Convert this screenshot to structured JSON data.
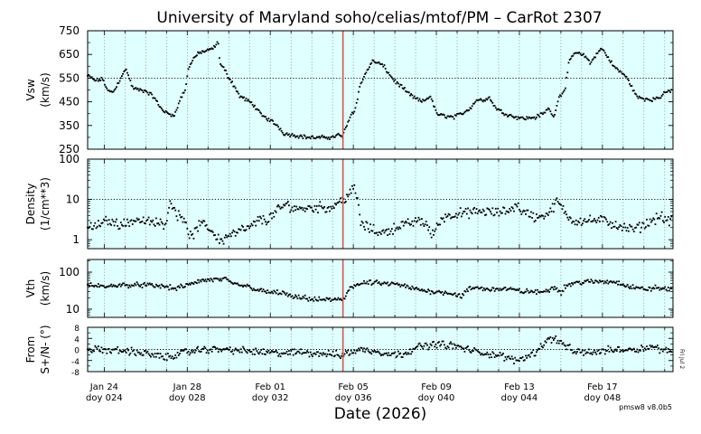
{
  "title": "University of Maryland  soho/celias/mtof/PM – CarRot 2307",
  "xlabel": "Date (2026)",
  "version": "pmsw8 v8.0b5",
  "side_note": "Fri Jul 2",
  "colors": {
    "panel_bg": "#e0ffff",
    "marker": "#000000",
    "event_line": "#d9534f",
    "grid": "#7a7a7a"
  },
  "chart_data": [
    {
      "type": "scatter",
      "ylabel": "Vsw\n(km/s)",
      "ylim": [
        250,
        750
      ],
      "yticks": [
        250,
        350,
        450,
        550,
        650,
        750
      ],
      "reference_line": 550,
      "grid": true,
      "xlim": [
        0,
        28
      ],
      "anchors": [
        [
          0,
          560
        ],
        [
          0.4,
          540
        ],
        [
          0.8,
          545
        ],
        [
          1.0,
          500
        ],
        [
          1.2,
          490
        ],
        [
          1.4,
          500
        ],
        [
          1.8,
          570
        ],
        [
          2.0,
          585
        ],
        [
          2.3,
          510
        ],
        [
          2.6,
          500
        ],
        [
          3.0,
          495
        ],
        [
          3.4,
          470
        ],
        [
          3.7,
          430
        ],
        [
          4.0,
          405
        ],
        [
          4.3,
          395
        ],
        [
          4.5,
          400
        ],
        [
          4.8,
          470
        ],
        [
          5.0,
          495
        ],
        [
          5.2,
          600
        ],
        [
          5.5,
          640
        ],
        [
          5.8,
          660
        ],
        [
          6.2,
          665
        ],
        [
          6.5,
          680
        ],
        [
          6.7,
          700
        ],
        [
          6.8,
          610
        ],
        [
          7.0,
          590
        ],
        [
          7.2,
          560
        ],
        [
          7.5,
          520
        ],
        [
          7.8,
          475
        ],
        [
          8.2,
          455
        ],
        [
          8.5,
          440
        ],
        [
          8.9,
          395
        ],
        [
          9.2,
          380
        ],
        [
          9.5,
          365
        ],
        [
          9.8,
          345
        ],
        [
          10.1,
          315
        ],
        [
          10.5,
          310
        ],
        [
          10.9,
          305
        ],
        [
          11.3,
          300
        ],
        [
          11.8,
          298
        ],
        [
          12.2,
          300
        ],
        [
          12.5,
          300
        ],
        [
          12.9,
          310
        ],
        [
          13.1,
          305
        ],
        [
          13.5,
          395
        ],
        [
          13.7,
          410
        ],
        [
          14.0,
          520
        ],
        [
          14.3,
          575
        ],
        [
          14.6,
          620
        ],
        [
          14.9,
          615
        ],
        [
          15.2,
          600
        ],
        [
          15.5,
          565
        ],
        [
          15.8,
          535
        ],
        [
          16.1,
          515
        ],
        [
          16.4,
          490
        ],
        [
          16.8,
          465
        ],
        [
          17.2,
          450
        ],
        [
          17.6,
          475
        ],
        [
          17.8,
          425
        ],
        [
          18.0,
          395
        ],
        [
          18.4,
          390
        ],
        [
          18.8,
          385
        ],
        [
          19.2,
          400
        ],
        [
          19.6,
          420
        ],
        [
          20.0,
          460
        ],
        [
          20.3,
          455
        ],
        [
          20.6,
          470
        ],
        [
          20.9,
          430
        ],
        [
          21.2,
          410
        ],
        [
          21.6,
          395
        ],
        [
          22.0,
          385
        ],
        [
          22.5,
          380
        ],
        [
          23.0,
          385
        ],
        [
          23.4,
          400
        ],
        [
          23.7,
          425
        ],
        [
          23.9,
          380
        ],
        [
          24.2,
          470
        ],
        [
          24.5,
          500
        ],
        [
          24.7,
          610
        ],
        [
          25.0,
          660
        ],
        [
          25.3,
          650
        ],
        [
          25.6,
          640
        ],
        [
          25.8,
          610
        ],
        [
          26.1,
          650
        ],
        [
          26.4,
          675
        ],
        [
          26.7,
          640
        ],
        [
          27.0,
          600
        ],
        [
          27.3,
          580
        ],
        [
          27.6,
          560
        ],
        [
          27.9,
          520
        ]
      ],
      "anchors_tail": [
        [
          28.2,
          470
        ],
        [
          28.6,
          462
        ],
        [
          29.0,
          460
        ],
        [
          29.4,
          470
        ],
        [
          29.7,
          490
        ],
        [
          30.0,
          500
        ]
      ],
      "amp": 10
    },
    {
      "type": "scatter",
      "ylabel": "Density\n(1/cm**3)",
      "yscale": "log",
      "ylim": [
        0.6,
        100
      ],
      "yticks": [
        1,
        10,
        100
      ],
      "reference_line": 10,
      "grid": true,
      "anchors": [
        [
          0,
          2.0
        ],
        [
          0.5,
          2.2
        ],
        [
          1.0,
          3.0
        ],
        [
          1.5,
          2.5
        ],
        [
          2.0,
          2.5
        ],
        [
          2.5,
          3.2
        ],
        [
          3.0,
          2.8
        ],
        [
          3.5,
          2.6
        ],
        [
          4.0,
          2.5
        ],
        [
          4.3,
          8.5
        ],
        [
          4.6,
          4.0
        ],
        [
          5.0,
          3.5
        ],
        [
          5.2,
          1.1
        ],
        [
          5.5,
          1.5
        ],
        [
          5.8,
          2.5
        ],
        [
          6.2,
          2.0
        ],
        [
          6.6,
          1.2
        ],
        [
          6.9,
          0.9
        ],
        [
          7.2,
          1.3
        ],
        [
          7.6,
          1.5
        ],
        [
          8.0,
          1.8
        ],
        [
          8.4,
          2.0
        ],
        [
          8.8,
          3.2
        ],
        [
          9.2,
          3.0
        ],
        [
          9.5,
          4.0
        ],
        [
          9.8,
          5.5
        ],
        [
          10.2,
          7.5
        ],
        [
          10.6,
          6.0
        ],
        [
          11.0,
          6.0
        ],
        [
          11.5,
          6.2
        ],
        [
          12.0,
          6.5
        ],
        [
          12.5,
          6.0
        ],
        [
          12.9,
          9.0
        ],
        [
          13.2,
          10.5
        ],
        [
          13.5,
          15
        ],
        [
          13.7,
          18
        ],
        [
          14.0,
          2.5
        ],
        [
          14.4,
          2.0
        ],
        [
          14.8,
          1.6
        ],
        [
          15.2,
          1.5
        ],
        [
          15.6,
          1.8
        ],
        [
          16.0,
          2.2
        ],
        [
          16.5,
          2.5
        ],
        [
          17.0,
          3.0
        ],
        [
          17.4,
          2.5
        ],
        [
          17.6,
          1.3
        ],
        [
          17.9,
          1.8
        ],
        [
          18.2,
          3.5
        ],
        [
          18.6,
          4.0
        ],
        [
          19.0,
          4.5
        ],
        [
          19.4,
          4.5
        ],
        [
          19.8,
          4.8
        ],
        [
          20.2,
          5.0
        ],
        [
          20.6,
          5.0
        ],
        [
          21.0,
          4.5
        ],
        [
          21.4,
          5.0
        ],
        [
          21.8,
          6.0
        ],
        [
          22.0,
          7.5
        ],
        [
          22.3,
          5.0
        ],
        [
          22.6,
          4.5
        ],
        [
          23.0,
          3.5
        ],
        [
          23.4,
          4.0
        ],
        [
          23.8,
          5.0
        ],
        [
          24.1,
          9.0
        ],
        [
          24.4,
          5.5
        ],
        [
          24.7,
          3.5
        ],
        [
          25.0,
          3.0
        ],
        [
          25.5,
          3.0
        ],
        [
          26.0,
          3.0
        ],
        [
          26.5,
          3.0
        ],
        [
          26.9,
          2.5
        ],
        [
          27.3,
          2.2
        ],
        [
          27.7,
          1.8
        ],
        [
          28.0,
          1.8
        ]
      ],
      "anchors_tail": [
        [
          28.3,
          2.0
        ],
        [
          28.7,
          2.5
        ],
        [
          29.1,
          3.2
        ],
        [
          29.4,
          4.0
        ],
        [
          29.7,
          3.0
        ],
        [
          30.0,
          2.8
        ]
      ],
      "amp": 0.15
    },
    {
      "type": "scatter",
      "ylabel": "Vth\n(km/s)",
      "yscale": "log",
      "ylim": [
        6,
        220
      ],
      "yticks": [
        10,
        100
      ],
      "grid": true,
      "anchors": [
        [
          0,
          45
        ],
        [
          0.5,
          42
        ],
        [
          1.0,
          40
        ],
        [
          1.5,
          45
        ],
        [
          2.0,
          45
        ],
        [
          3.0,
          45
        ],
        [
          3.5,
          42
        ],
        [
          4.0,
          42
        ],
        [
          4.4,
          35
        ],
        [
          4.8,
          40
        ],
        [
          5.2,
          45
        ],
        [
          5.6,
          55
        ],
        [
          6.0,
          60
        ],
        [
          6.5,
          62
        ],
        [
          7.0,
          65
        ],
        [
          7.4,
          50
        ],
        [
          7.8,
          45
        ],
        [
          8.2,
          42
        ],
        [
          8.6,
          35
        ],
        [
          9.0,
          30
        ],
        [
          9.5,
          28
        ],
        [
          10.0,
          28
        ],
        [
          10.4,
          22
        ],
        [
          10.8,
          20
        ],
        [
          11.2,
          20
        ],
        [
          11.6,
          18
        ],
        [
          12.0,
          18
        ],
        [
          12.5,
          18
        ],
        [
          13.0,
          18
        ],
        [
          13.2,
          20
        ],
        [
          13.5,
          40
        ],
        [
          13.8,
          45
        ],
        [
          14.2,
          50
        ],
        [
          14.6,
          52
        ],
        [
          15.0,
          50
        ],
        [
          15.5,
          48
        ],
        [
          16.0,
          45
        ],
        [
          16.4,
          40
        ],
        [
          16.8,
          35
        ],
        [
          17.2,
          32
        ],
        [
          17.6,
          30
        ],
        [
          18.0,
          30
        ],
        [
          18.4,
          28
        ],
        [
          18.8,
          26
        ],
        [
          19.2,
          22
        ],
        [
          19.6,
          35
        ],
        [
          20.0,
          38
        ],
        [
          20.4,
          35
        ],
        [
          20.8,
          35
        ],
        [
          21.2,
          35
        ],
        [
          21.6,
          35
        ],
        [
          22.0,
          32
        ],
        [
          22.4,
          30
        ],
        [
          22.8,
          30
        ],
        [
          23.2,
          28
        ],
        [
          23.6,
          32
        ],
        [
          24.0,
          40
        ],
        [
          24.3,
          28
        ],
        [
          24.6,
          45
        ],
        [
          25.0,
          50
        ],
        [
          25.5,
          55
        ],
        [
          26.0,
          55
        ],
        [
          26.5,
          55
        ],
        [
          27.0,
          55
        ],
        [
          27.4,
          50
        ],
        [
          27.8,
          40
        ],
        [
          28.0,
          40
        ]
      ],
      "anchors_tail": [
        [
          28.4,
          35
        ],
        [
          28.8,
          35
        ],
        [
          29.2,
          38
        ],
        [
          29.6,
          35
        ],
        [
          30.0,
          35
        ]
      ],
      "amp": 0.08
    },
    {
      "type": "scatter",
      "ylabel": "From\nS+/N- (°)",
      "ylim": [
        -8,
        8
      ],
      "yticks": [
        -8,
        -4,
        0,
        4,
        8
      ],
      "reference_line": 0,
      "grid": true,
      "anchors": [
        [
          0,
          0
        ],
        [
          2,
          -0.5
        ],
        [
          3,
          -1.5
        ],
        [
          4,
          -3
        ],
        [
          5,
          -1
        ],
        [
          6,
          0
        ],
        [
          7,
          0
        ],
        [
          8,
          -0.5
        ],
        [
          9,
          -1
        ],
        [
          10,
          -1.5
        ],
        [
          11,
          -1
        ],
        [
          12,
          -1.5
        ],
        [
          13,
          -2
        ],
        [
          13.5,
          -1
        ],
        [
          14,
          0
        ],
        [
          15,
          -1
        ],
        [
          16,
          -2
        ],
        [
          17,
          1
        ],
        [
          18,
          2
        ],
        [
          19,
          1
        ],
        [
          20,
          -1
        ],
        [
          21,
          -2
        ],
        [
          22,
          -4
        ],
        [
          23,
          -1
        ],
        [
          23.5,
          3
        ],
        [
          24,
          4
        ],
        [
          25,
          -1
        ],
        [
          26,
          -1
        ],
        [
          27,
          0
        ],
        [
          28,
          0
        ]
      ],
      "anchors_tail": [
        [
          29,
          1
        ],
        [
          30,
          -1
        ]
      ],
      "amp": 1.6
    }
  ],
  "x_axis": {
    "start_doy": 23.2,
    "end_doy": 51.4,
    "event_doy": 35.5,
    "ticks": [
      {
        "doy": 24,
        "date": "Jan 24",
        "doy_label": "doy 024"
      },
      {
        "doy": 28,
        "date": "Jan 28",
        "doy_label": "doy 028"
      },
      {
        "doy": 32,
        "date": "Feb 01",
        "doy_label": "doy 032"
      },
      {
        "doy": 36,
        "date": "Feb 05",
        "doy_label": "doy 036"
      },
      {
        "doy": 40,
        "date": "Feb 09",
        "doy_label": "doy 040"
      },
      {
        "doy": 44,
        "date": "Feb 13",
        "doy_label": "doy 044"
      },
      {
        "doy": 48,
        "date": "Feb 17",
        "doy_label": "doy 048"
      }
    ]
  }
}
